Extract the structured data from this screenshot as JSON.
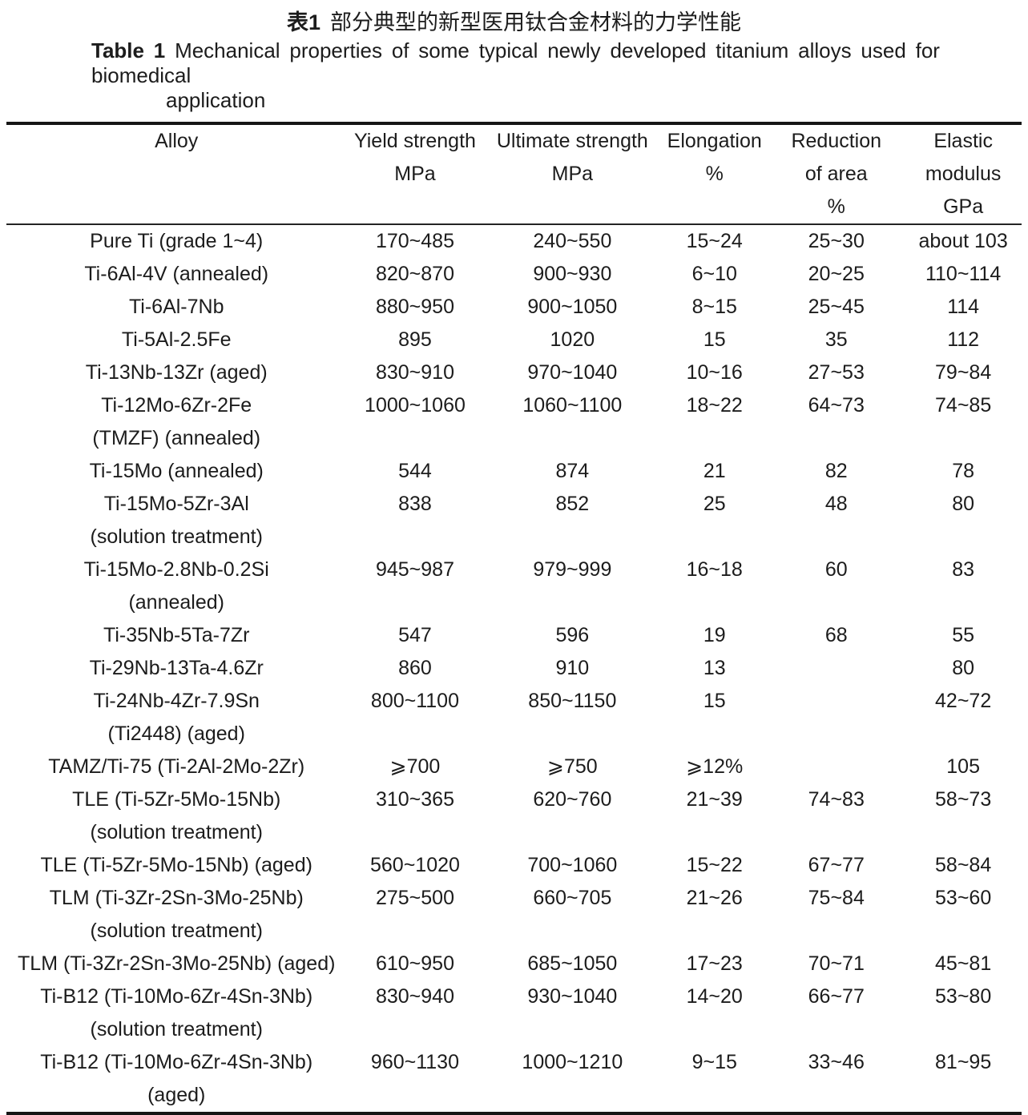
{
  "page": {
    "background_color": "#ffffff",
    "text_color": "#1c1c1c",
    "rule_color": "#161616"
  },
  "caption": {
    "zh_label": "表1",
    "zh_text": "部分典型的新型医用钛合金材料的力学性能",
    "en_label": "Table 1",
    "en_line1": "Mechanical properties of some typical newly developed titanium alloys used for biomedical",
    "en_line2": "application"
  },
  "table": {
    "header": [
      {
        "id": "alloy",
        "lines": [
          "Alloy"
        ]
      },
      {
        "id": "yield-strength",
        "lines": [
          "Yield strength",
          "MPa"
        ]
      },
      {
        "id": "ultimate-strength",
        "lines": [
          "Ultimate strength",
          "MPa"
        ]
      },
      {
        "id": "elongation",
        "lines": [
          "Elongation",
          "%"
        ]
      },
      {
        "id": "reduction-of-area",
        "lines": [
          "Reduction",
          "of area",
          "%"
        ]
      },
      {
        "id": "elastic-modulus",
        "lines": [
          "Elastic",
          "modulus",
          "GPa"
        ]
      }
    ],
    "rows": [
      {
        "alloy": [
          "Pure Ti (grade 1~4)"
        ],
        "yield_strength": "170~485",
        "ultimate_strength": "240~550",
        "elongation": "15~24",
        "reduction_of_area": "25~30",
        "elastic_modulus": "about 103"
      },
      {
        "alloy": [
          "Ti-6Al-4V (annealed)"
        ],
        "yield_strength": "820~870",
        "ultimate_strength": "900~930",
        "elongation": "6~10",
        "reduction_of_area": "20~25",
        "elastic_modulus": "110~114"
      },
      {
        "alloy": [
          "Ti-6Al-7Nb"
        ],
        "yield_strength": "880~950",
        "ultimate_strength": "900~1050",
        "elongation": "8~15",
        "reduction_of_area": "25~45",
        "elastic_modulus": "114"
      },
      {
        "alloy": [
          "Ti-5Al-2.5Fe"
        ],
        "yield_strength": "895",
        "ultimate_strength": "1020",
        "elongation": "15",
        "reduction_of_area": "35",
        "elastic_modulus": "112"
      },
      {
        "alloy": [
          "Ti-13Nb-13Zr (aged)"
        ],
        "yield_strength": "830~910",
        "ultimate_strength": "970~1040",
        "elongation": "10~16",
        "reduction_of_area": "27~53",
        "elastic_modulus": "79~84"
      },
      {
        "alloy": [
          "Ti-12Mo-6Zr-2Fe",
          "(TMZF) (annealed)"
        ],
        "yield_strength": "1000~1060",
        "ultimate_strength": "1060~1100",
        "elongation": "18~22",
        "reduction_of_area": "64~73",
        "elastic_modulus": "74~85"
      },
      {
        "alloy": [
          "Ti-15Mo (annealed)"
        ],
        "yield_strength": "544",
        "ultimate_strength": "874",
        "elongation": "21",
        "reduction_of_area": "82",
        "elastic_modulus": "78"
      },
      {
        "alloy": [
          "Ti-15Mo-5Zr-3Al",
          "(solution treatment)"
        ],
        "yield_strength": "838",
        "ultimate_strength": "852",
        "elongation": "25",
        "reduction_of_area": "48",
        "elastic_modulus": "80"
      },
      {
        "alloy": [
          "Ti-15Mo-2.8Nb-0.2Si",
          "(annealed)"
        ],
        "yield_strength": "945~987",
        "ultimate_strength": "979~999",
        "elongation": "16~18",
        "reduction_of_area": "60",
        "elastic_modulus": "83"
      },
      {
        "alloy": [
          "Ti-35Nb-5Ta-7Zr"
        ],
        "yield_strength": "547",
        "ultimate_strength": "596",
        "elongation": "19",
        "reduction_of_area": "68",
        "elastic_modulus": "55"
      },
      {
        "alloy": [
          "Ti-29Nb-13Ta-4.6Zr"
        ],
        "yield_strength": "860",
        "ultimate_strength": "910",
        "elongation": "13",
        "reduction_of_area": "",
        "elastic_modulus": "80"
      },
      {
        "alloy": [
          "Ti-24Nb-4Zr-7.9Sn",
          "(Ti2448) (aged)"
        ],
        "yield_strength": "800~1100",
        "ultimate_strength": "850~1150",
        "elongation": "15",
        "reduction_of_area": "",
        "elastic_modulus": "42~72"
      },
      {
        "alloy": [
          "TAMZ/Ti-75 (Ti-2Al-2Mo-2Zr)"
        ],
        "yield_strength": "⩾700",
        "ultimate_strength": "⩾750",
        "elongation": "⩾12%",
        "reduction_of_area": "",
        "elastic_modulus": "105"
      },
      {
        "alloy": [
          "TLE (Ti-5Zr-5Mo-15Nb)",
          "(solution treatment)"
        ],
        "yield_strength": "310~365",
        "ultimate_strength": "620~760",
        "elongation": "21~39",
        "reduction_of_area": "74~83",
        "elastic_modulus": "58~73"
      },
      {
        "alloy": [
          "TLE (Ti-5Zr-5Mo-15Nb) (aged)"
        ],
        "yield_strength": "560~1020",
        "ultimate_strength": "700~1060",
        "elongation": "15~22",
        "reduction_of_area": "67~77",
        "elastic_modulus": "58~84"
      },
      {
        "alloy": [
          "TLM (Ti-3Zr-2Sn-3Mo-25Nb)",
          "(solution treatment)"
        ],
        "yield_strength": "275~500",
        "ultimate_strength": "660~705",
        "elongation": "21~26",
        "reduction_of_area": "75~84",
        "elastic_modulus": "53~60"
      },
      {
        "alloy": [
          "TLM (Ti-3Zr-2Sn-3Mo-25Nb) (aged)"
        ],
        "yield_strength": "610~950",
        "ultimate_strength": "685~1050",
        "elongation": "17~23",
        "reduction_of_area": "70~71",
        "elastic_modulus": "45~81"
      },
      {
        "alloy": [
          "Ti-B12 (Ti-10Mo-6Zr-4Sn-3Nb)",
          "(solution treatment)"
        ],
        "yield_strength": "830~940",
        "ultimate_strength": "930~1040",
        "elongation": "14~20",
        "reduction_of_area": "66~77",
        "elastic_modulus": "53~80"
      },
      {
        "alloy": [
          "Ti-B12 (Ti-10Mo-6Zr-4Sn-3Nb)",
          "(aged)"
        ],
        "yield_strength": "960~1130",
        "ultimate_strength": "1000~1210",
        "elongation": "9~15",
        "reduction_of_area": "33~46",
        "elastic_modulus": "81~95"
      }
    ]
  }
}
